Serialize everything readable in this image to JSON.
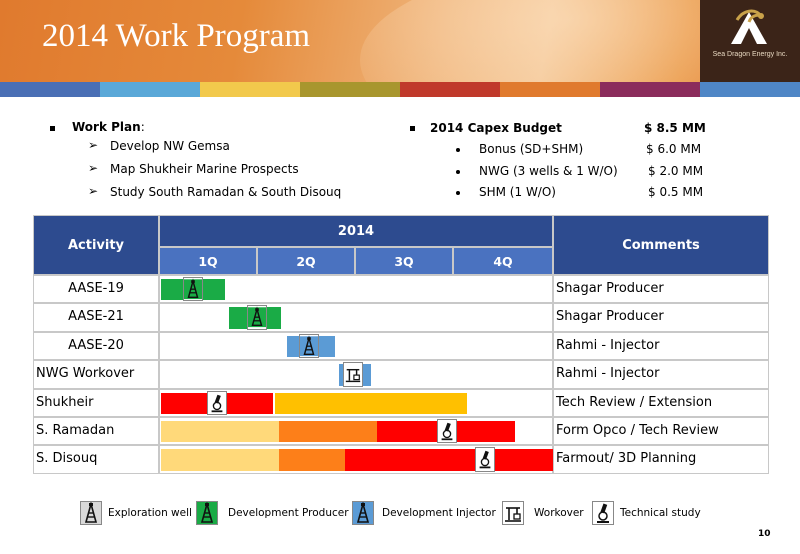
{
  "header": {
    "title": "2014 Work Program",
    "logo_text": "Sea Dragon Energy Inc.",
    "stripe_colors": [
      "#4a6fb5",
      "#5aa8d8",
      "#f2c94c",
      "#a8962e",
      "#c0392b",
      "#e07a2e",
      "#8b2c5c",
      "#4f86c6"
    ]
  },
  "work_plan": {
    "heading": "Work Plan",
    "heading_suffix": ":",
    "items": [
      "Develop NW Gemsa",
      "Map Shukheir Marine Prospects",
      "Study South Ramadan & South Disouq"
    ]
  },
  "capex": {
    "heading": "2014 Capex Budget",
    "total": "$ 8.5 MM",
    "items": [
      {
        "label": "Bonus (SD+SHM)",
        "value": "$ 6.0 MM"
      },
      {
        "label": "NWG  (3 wells & 1 W/O)",
        "value": "$ 2.0 MM"
      },
      {
        "label": "SHM   (1 W/O)",
        "value": "$ 0.5 MM"
      }
    ]
  },
  "table": {
    "col_activity": "Activity",
    "col_year": "2014",
    "col_comments": "Comments",
    "quarters": [
      "1Q",
      "2Q",
      "3Q",
      "4Q"
    ],
    "rows": [
      {
        "activity": "AASE-19",
        "comment": "Shagar Producer",
        "icon": "development-producer-icon"
      },
      {
        "activity": "AASE-21",
        "comment": "Shagar Producer",
        "icon": "development-producer-icon"
      },
      {
        "activity": "AASE-20",
        "comment": "Rahmi - Injector",
        "icon": "development-injector-icon"
      },
      {
        "activity": "NWG Workover",
        "comment": "Rahmi - Injector",
        "icon": "workover-icon"
      },
      {
        "activity": "Shukheir",
        "comment": "Tech Review / Extension",
        "icon": "technical-study-icon"
      },
      {
        "activity": "S. Ramadan",
        "comment": "Form Opco / Tech Review",
        "icon": "technical-study-icon"
      },
      {
        "activity": "S. Disouq",
        "comment": "Farmout/ 3D Planning",
        "icon": "technical-study-icon"
      }
    ]
  },
  "colors": {
    "header_blue": "#2d4b8f",
    "quarter_blue": "#4a72c0",
    "green": "#1aab46",
    "light_blue": "#5b9bd5",
    "red": "#ff0000",
    "amber": "#ffc000",
    "orange": "#fd7f19",
    "light_amber": "#ffd97a"
  },
  "legend": [
    {
      "label": "Exploration well",
      "icon": "exploration-well-icon"
    },
    {
      "label": "Development Producer",
      "icon": "development-producer-icon"
    },
    {
      "label": "Development Injector",
      "icon": "development-injector-icon"
    },
    {
      "label": "Workover",
      "icon": "workover-icon"
    },
    {
      "label": "Technical study",
      "icon": "technical-study-icon"
    }
  ],
  "page_number": "10"
}
